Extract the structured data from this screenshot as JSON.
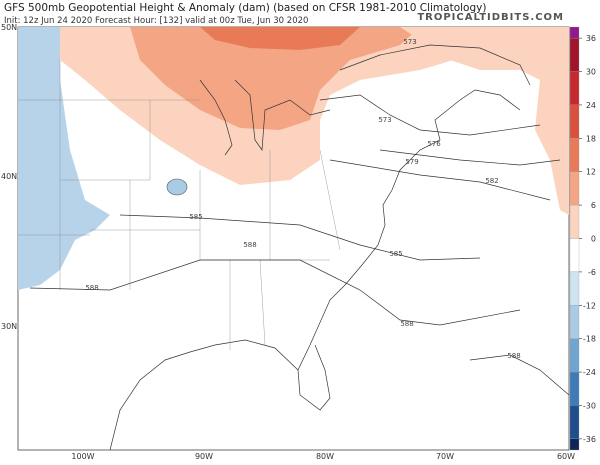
{
  "header": {
    "title": "GFS 500mb Geopotential Height & Anomaly (dam) (based on CFSR 1981-2010 Climatology)",
    "subtitle": "Init: 12z Jun 24 2020   Forecast Hour: [132]   valid at 00z Tue, Jun 30 2020",
    "brand": "TROPICALTIDBITS.COM"
  },
  "map": {
    "lat_labels": [
      "50N",
      "40N",
      "30N"
    ],
    "lon_labels": [
      "100W",
      "90W",
      "80W",
      "70W",
      "60W"
    ],
    "contour_labels": [
      "573",
      "573",
      "576",
      "579",
      "582",
      "585",
      "585",
      "588",
      "588",
      "588",
      "588"
    ]
  },
  "colorbar": {
    "lim": [
      -38,
      38
    ],
    "ticks": [
      36,
      30,
      24,
      18,
      12,
      6,
      0,
      -6,
      -12,
      -18,
      -24,
      -30,
      -36
    ],
    "colors": [
      "#8e1a8e",
      "#a0152a",
      "#c62a2e",
      "#d9503c",
      "#e87a58",
      "#f4a583",
      "#fbd3bf",
      "#ffffff",
      "#d0e3f0",
      "#a9cbe4",
      "#6fa6d0",
      "#3f7bb6",
      "#1f4e8c",
      "#0e2558"
    ]
  }
}
